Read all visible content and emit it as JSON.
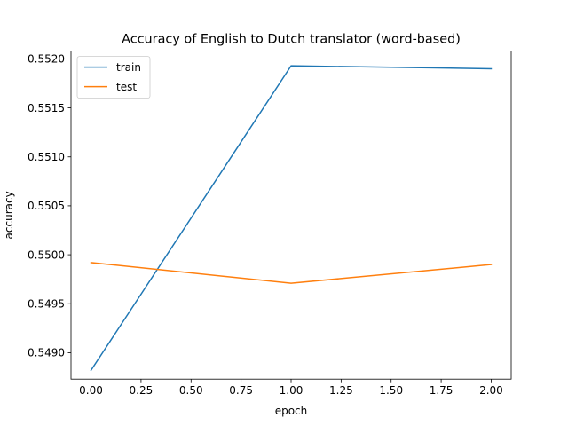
{
  "chart_data": {
    "type": "line",
    "title": "Accuracy of English to Dutch translator (word-based)",
    "xlabel": "epoch",
    "ylabel": "accuracy",
    "xlim": [
      -0.1,
      2.1
    ],
    "ylim": [
      0.54873,
      0.55208
    ],
    "xticks": [
      0.0,
      0.25,
      0.5,
      0.75,
      1.0,
      1.25,
      1.5,
      1.75,
      2.0
    ],
    "xtick_labels": [
      "0.00",
      "0.25",
      "0.50",
      "0.75",
      "1.00",
      "1.25",
      "1.50",
      "1.75",
      "2.00"
    ],
    "yticks": [
      0.549,
      0.5495,
      0.55,
      0.5505,
      0.551,
      0.5515,
      0.552
    ],
    "ytick_labels": [
      "0.5490",
      "0.5495",
      "0.5500",
      "0.5505",
      "0.5510",
      "0.5515",
      "0.5520"
    ],
    "x": [
      0,
      1,
      2
    ],
    "series": [
      {
        "name": "train",
        "color": "#1f77b4",
        "values": [
          0.54882,
          0.55193,
          0.5519
        ]
      },
      {
        "name": "test",
        "color": "#ff7f0e",
        "values": [
          0.54992,
          0.54971,
          0.5499
        ]
      }
    ],
    "legend": "upper-left",
    "grid": false
  }
}
